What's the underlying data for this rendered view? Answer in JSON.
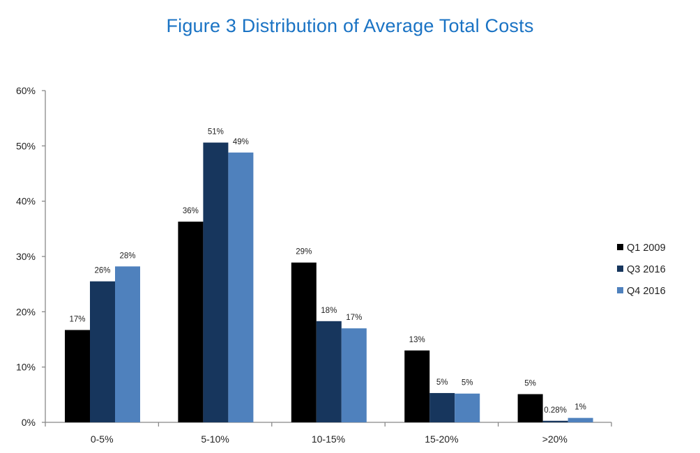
{
  "chart_data": {
    "type": "bar",
    "title": "Figure 3 Distribution of Average Total Costs",
    "xlabel": "",
    "ylabel": "",
    "ylim": [
      0,
      60
    ],
    "yticks": [
      "0%",
      "10%",
      "20%",
      "30%",
      "40%",
      "50%",
      "60%"
    ],
    "ytick_values": [
      0,
      10,
      20,
      30,
      40,
      50,
      60
    ],
    "categories": [
      "0-5%",
      "5-10%",
      "10-15%",
      "15-20%",
      ">20%"
    ],
    "grid": false,
    "legend_position": "right",
    "series": [
      {
        "name": "Q1 2009",
        "color": "#000000",
        "values": [
          16.7,
          36.3,
          28.9,
          13.0,
          5.1
        ],
        "labels": [
          "17%",
          "36%",
          "29%",
          "13%",
          "5%"
        ]
      },
      {
        "name": "Q3 2016",
        "color": "#17365d",
        "values": [
          25.5,
          50.6,
          18.3,
          5.3,
          0.28
        ],
        "labels": [
          "26%",
          "51%",
          "18%",
          "5%",
          "0.28%"
        ]
      },
      {
        "name": "Q4 2016",
        "color": "#4f81bd",
        "values": [
          28.2,
          48.8,
          17.0,
          5.2,
          0.8
        ],
        "labels": [
          "28%",
          "49%",
          "17%",
          "5%",
          "1%"
        ]
      }
    ]
  }
}
